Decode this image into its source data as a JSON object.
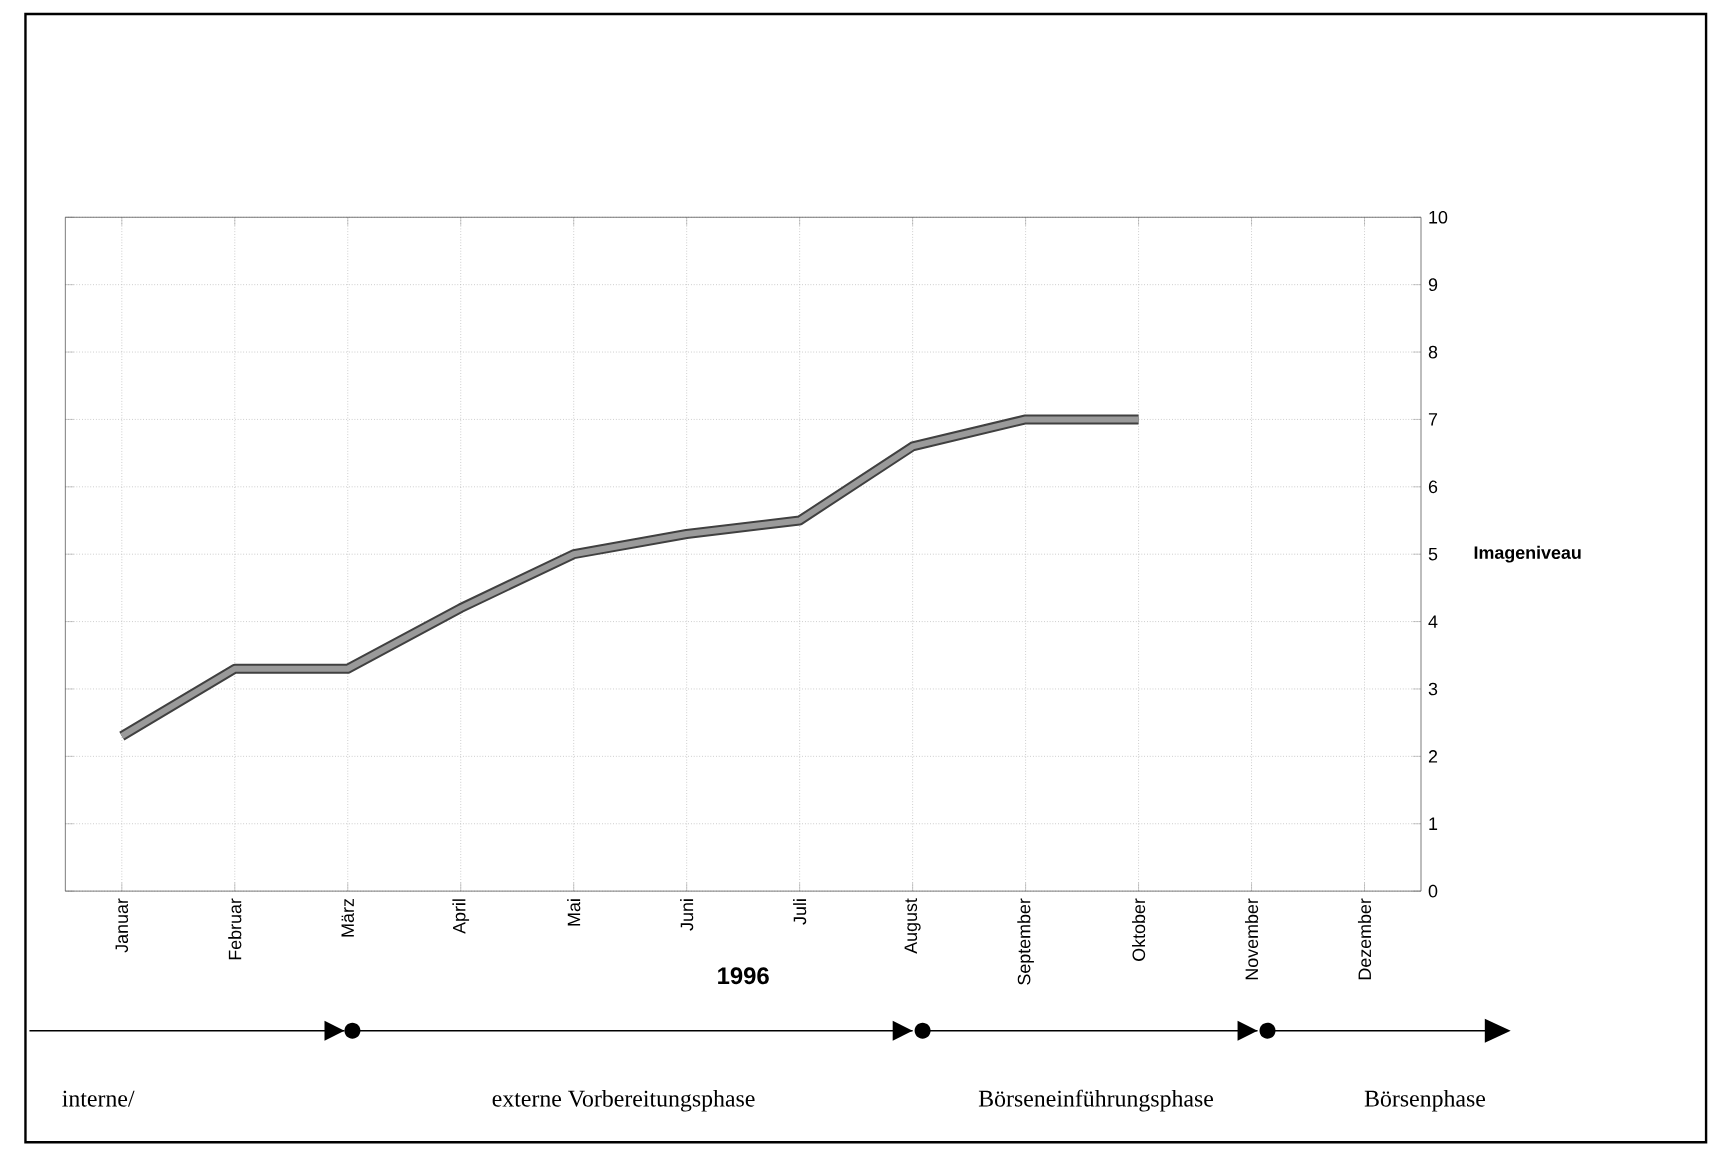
{
  "chart_data": {
    "type": "line",
    "xlabel": "1996",
    "ylabel": "Imageniveau",
    "categories": [
      "Januar",
      "Februar",
      "März",
      "April",
      "Mai",
      "Juni",
      "Juli",
      "August",
      "September",
      "Oktober",
      "November",
      "Dezember"
    ],
    "values": [
      2.3,
      3.3,
      3.3,
      4.2,
      5.0,
      5.3,
      5.5,
      6.6,
      7.0,
      7.0,
      null,
      null
    ],
    "color": "#9a9a9a",
    "ylim": [
      0,
      10
    ],
    "yticks": [
      0,
      1,
      2,
      3,
      4,
      5,
      6,
      7,
      8,
      9,
      10
    ],
    "grid": true,
    "marker": "none",
    "line_style": "solid",
    "annotations": [
      "interne/",
      "externe Vorbereitungsphase",
      "Börseneinführungsphase",
      "Börsenphase"
    ]
  }
}
